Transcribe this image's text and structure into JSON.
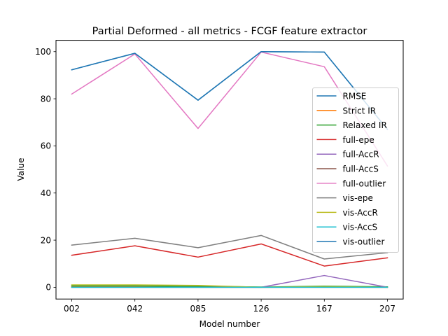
{
  "chart_data": {
    "type": "line",
    "title": "Partial Deformed - all metrics - FCGF feature extractor",
    "xlabel": "Model number",
    "ylabel": "Value",
    "categories": [
      "002",
      "042",
      "085",
      "126",
      "167",
      "207"
    ],
    "ylim": [
      -4.99,
      104.8
    ],
    "yticks": [
      0,
      20,
      40,
      60,
      80,
      100
    ],
    "grid": false,
    "legend_position": "center-right",
    "series": [
      {
        "name": "RMSE",
        "color": "#1f77b4",
        "values": [
          92.3,
          99.3,
          79.4,
          100.0,
          99.8,
          67.0
        ]
      },
      {
        "name": "Strict IR",
        "color": "#ff7f0e",
        "values": [
          0.3,
          0.3,
          0.2,
          0.0,
          0.1,
          0.0
        ]
      },
      {
        "name": "Relaxed IR",
        "color": "#2ca02c",
        "values": [
          0.6,
          0.6,
          0.4,
          0.1,
          0.5,
          0.2
        ]
      },
      {
        "name": "full-epe",
        "color": "#d62728",
        "values": [
          13.6,
          17.6,
          12.8,
          18.4,
          9.0,
          12.5
        ]
      },
      {
        "name": "full-AccR",
        "color": "#9467bd",
        "values": [
          0.0,
          0.0,
          0.0,
          0.0,
          5.0,
          0.0
        ]
      },
      {
        "name": "full-AccS",
        "color": "#8c564b",
        "values": [
          0.0,
          0.0,
          0.0,
          0.0,
          0.0,
          0.0
        ]
      },
      {
        "name": "full-outlier",
        "color": "#e377c2",
        "values": [
          82.0,
          99.0,
          67.4,
          99.8,
          93.6,
          51.5
        ]
      },
      {
        "name": "vis-epe",
        "color": "#7f7f7f",
        "values": [
          17.9,
          20.8,
          16.8,
          22.0,
          12.0,
          14.7
        ]
      },
      {
        "name": "vis-AccR",
        "color": "#bcbd22",
        "values": [
          1.0,
          1.0,
          0.8,
          0.0,
          0.3,
          0.0
        ]
      },
      {
        "name": "vis-AccS",
        "color": "#17becf",
        "values": [
          0.0,
          0.0,
          0.0,
          0.0,
          0.0,
          0.0
        ]
      },
      {
        "name": "vis-outlier",
        "color": "#1f77b4",
        "values": [
          92.3,
          99.3,
          79.4,
          100.0,
          99.8,
          67.0
        ]
      }
    ]
  }
}
